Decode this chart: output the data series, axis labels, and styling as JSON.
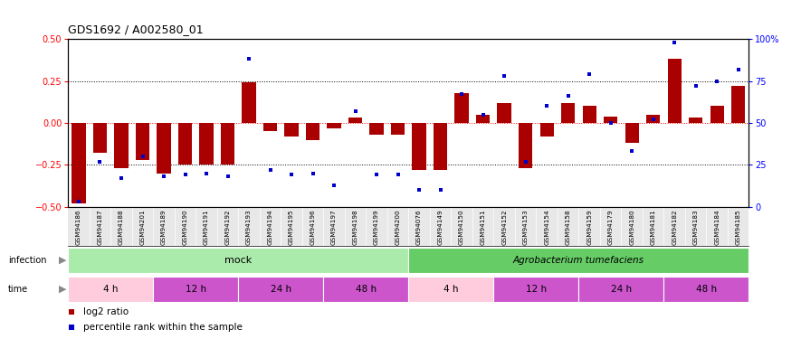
{
  "title": "GDS1692 / A002580_01",
  "samples": [
    "GSM94186",
    "GSM94187",
    "GSM94188",
    "GSM94201",
    "GSM94189",
    "GSM94190",
    "GSM94191",
    "GSM94192",
    "GSM94193",
    "GSM94194",
    "GSM94195",
    "GSM94196",
    "GSM94197",
    "GSM94198",
    "GSM94199",
    "GSM94200",
    "GSM94076",
    "GSM94149",
    "GSM94150",
    "GSM94151",
    "GSM94152",
    "GSM94153",
    "GSM94154",
    "GSM94158",
    "GSM94159",
    "GSM94179",
    "GSM94180",
    "GSM94181",
    "GSM94182",
    "GSM94183",
    "GSM94184",
    "GSM94185"
  ],
  "log2ratio": [
    -0.48,
    -0.18,
    -0.27,
    -0.22,
    -0.3,
    -0.25,
    -0.25,
    -0.25,
    0.24,
    -0.05,
    -0.08,
    -0.1,
    -0.03,
    0.03,
    -0.07,
    -0.07,
    -0.28,
    -0.28,
    0.18,
    0.05,
    0.12,
    -0.27,
    -0.08,
    0.12,
    0.1,
    0.04,
    -0.12,
    0.05,
    0.38,
    0.03,
    0.1,
    0.22
  ],
  "percentile": [
    3,
    27,
    17,
    30,
    18,
    19,
    20,
    18,
    88,
    22,
    19,
    20,
    13,
    57,
    19,
    19,
    10,
    10,
    67,
    55,
    78,
    27,
    60,
    66,
    79,
    50,
    33,
    52,
    98,
    72,
    75,
    82
  ],
  "bar_color": "#AA0000",
  "dot_color": "#0000CC",
  "ylim_left": [
    -0.5,
    0.5
  ],
  "ylim_right": [
    0,
    100
  ],
  "yticks_left": [
    -0.5,
    -0.25,
    0.0,
    0.25,
    0.5
  ],
  "yticks_right": [
    0,
    25,
    50,
    75,
    100
  ],
  "mock_color": "#AAEAAA",
  "agro_color": "#66CC66",
  "time_4h_color": "#FFCCDD",
  "time_other_color": "#CC55CC",
  "time_segs": [
    [
      0,
      3,
      "4 h",
      "#FFCCDD"
    ],
    [
      4,
      7,
      "12 h",
      "#CC55CC"
    ],
    [
      8,
      11,
      "24 h",
      "#CC55CC"
    ],
    [
      12,
      15,
      "48 h",
      "#CC55CC"
    ],
    [
      16,
      19,
      "4 h",
      "#FFCCDD"
    ],
    [
      20,
      23,
      "12 h",
      "#CC55CC"
    ],
    [
      24,
      27,
      "24 h",
      "#CC55CC"
    ],
    [
      28,
      31,
      "48 h",
      "#CC55CC"
    ]
  ]
}
